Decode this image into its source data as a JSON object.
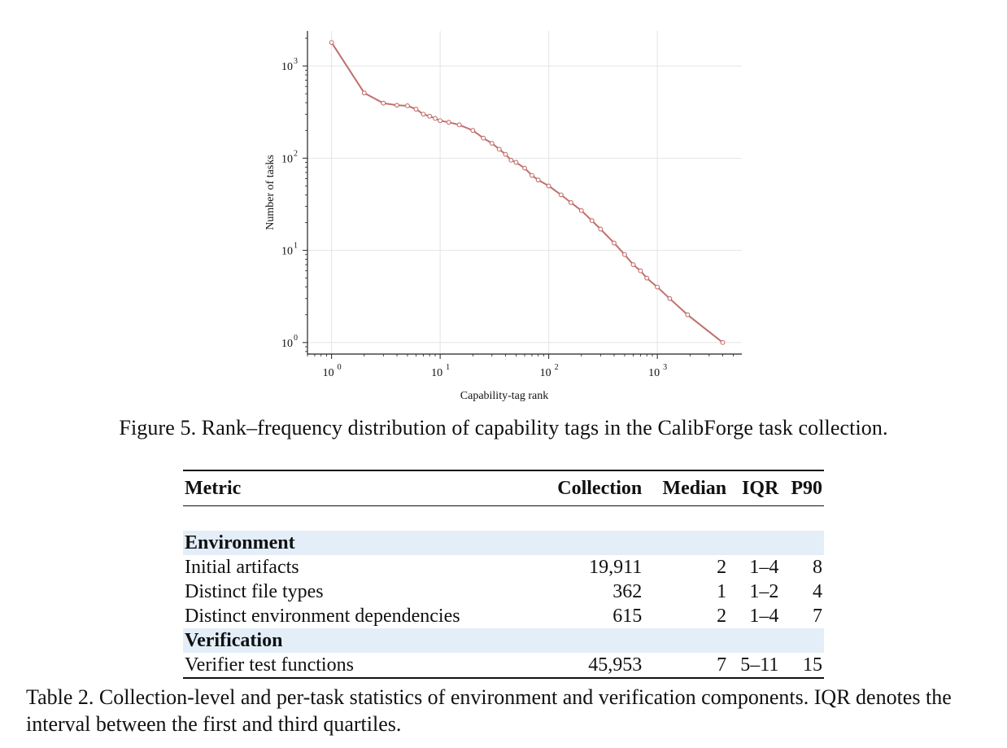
{
  "figure": {
    "caption": "Figure 5. Rank–frequency distribution of capability tags in the CalibForge task collection."
  },
  "chart_data": {
    "type": "line",
    "title": "",
    "xlabel": "Capability-tag rank",
    "ylabel": "Number of tasks",
    "xscale": "log",
    "yscale": "log",
    "xlim": [
      0.6,
      6000
    ],
    "ylim": [
      0.75,
      2400
    ],
    "x_ticks": [
      1,
      10,
      100,
      1000
    ],
    "x_tick_labels": [
      "10",
      "10",
      "10",
      "10"
    ],
    "x_tick_exponents": [
      "0",
      "1",
      "2",
      "3"
    ],
    "y_ticks": [
      1,
      10,
      100,
      1000
    ],
    "y_tick_labels": [
      "10",
      "10",
      "10",
      "10"
    ],
    "y_tick_exponents": [
      "0",
      "1",
      "2",
      "3"
    ],
    "grid": true,
    "color": "#c0706d",
    "series": [
      {
        "x": [
          1,
          2,
          3,
          4,
          5,
          6,
          7,
          8,
          9,
          10,
          12,
          15,
          20,
          25,
          30,
          35,
          40,
          45,
          50,
          60,
          70,
          80,
          100,
          130,
          160,
          200,
          250,
          300,
          400,
          500,
          600,
          700,
          800,
          1000,
          1300,
          1900,
          4000
        ],
        "y": [
          1800,
          510,
          395,
          375,
          370,
          340,
          300,
          285,
          270,
          255,
          245,
          230,
          200,
          165,
          145,
          125,
          110,
          95,
          90,
          78,
          65,
          58,
          50,
          40,
          33,
          27,
          21,
          17,
          12,
          9,
          7,
          6,
          5,
          4,
          3,
          2,
          1
        ]
      }
    ]
  },
  "table": {
    "headers": [
      "Metric",
      "Collection",
      "Median",
      "IQR",
      "P90"
    ],
    "sections": [
      {
        "name": "Environment",
        "rows": [
          [
            "Initial artifacts",
            "19,911",
            "2",
            "1–4",
            "8"
          ],
          [
            "Distinct file types",
            "362",
            "1",
            "1–2",
            "4"
          ],
          [
            "Distinct environment dependencies",
            "615",
            "2",
            "1–4",
            "7"
          ]
        ]
      },
      {
        "name": "Verification",
        "rows": [
          [
            "Verifier test functions",
            "45,953",
            "7",
            "5–11",
            "15"
          ]
        ]
      }
    ],
    "caption": "Table 2. Collection-level and per-task statistics of environment and verification components. IQR denotes the interval between the first and third quartiles."
  }
}
